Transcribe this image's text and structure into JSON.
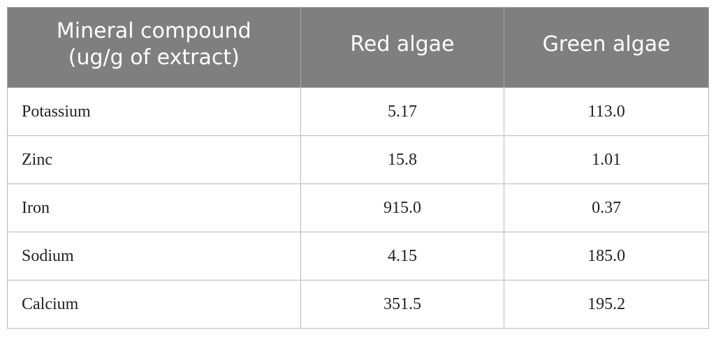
{
  "table": {
    "header": [
      [
        "Mineral compound",
        "(ug/g of extract)"
      ],
      [
        "Red algae"
      ],
      [
        "Green algae"
      ]
    ],
    "rows": [
      [
        "Potassium",
        "5.17",
        "113.0"
      ],
      [
        "Zinc",
        "15.8",
        "1.01"
      ],
      [
        "Iron",
        "915.0",
        "0.37"
      ],
      [
        "Sodium",
        "4.15",
        "185.0"
      ],
      [
        "Calcium",
        "351.5",
        "195.2"
      ]
    ]
  }
}
